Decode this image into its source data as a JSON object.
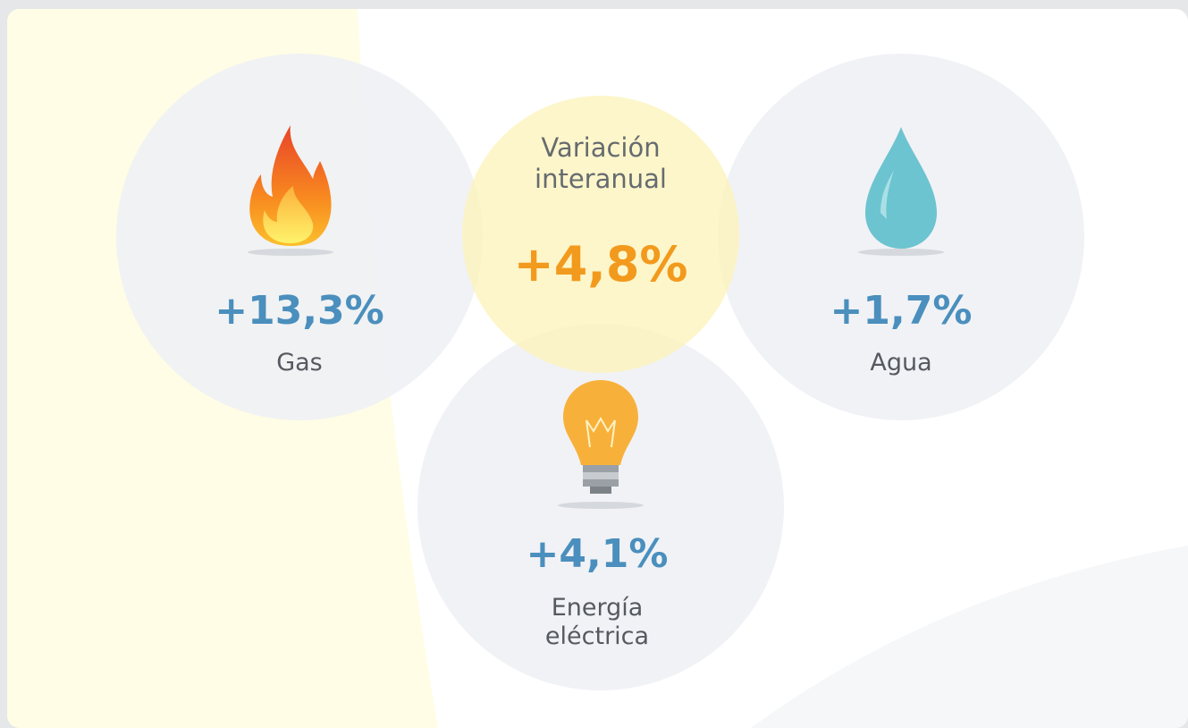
{
  "center": {
    "label": "Variación interanual",
    "value": "+4,8%"
  },
  "items": [
    {
      "value": "+13,3%",
      "label": "Gas"
    },
    {
      "value": "+1,7%",
      "label": "Agua"
    },
    {
      "value": "+4,1%",
      "label": "Energía eléctrica"
    }
  ]
}
